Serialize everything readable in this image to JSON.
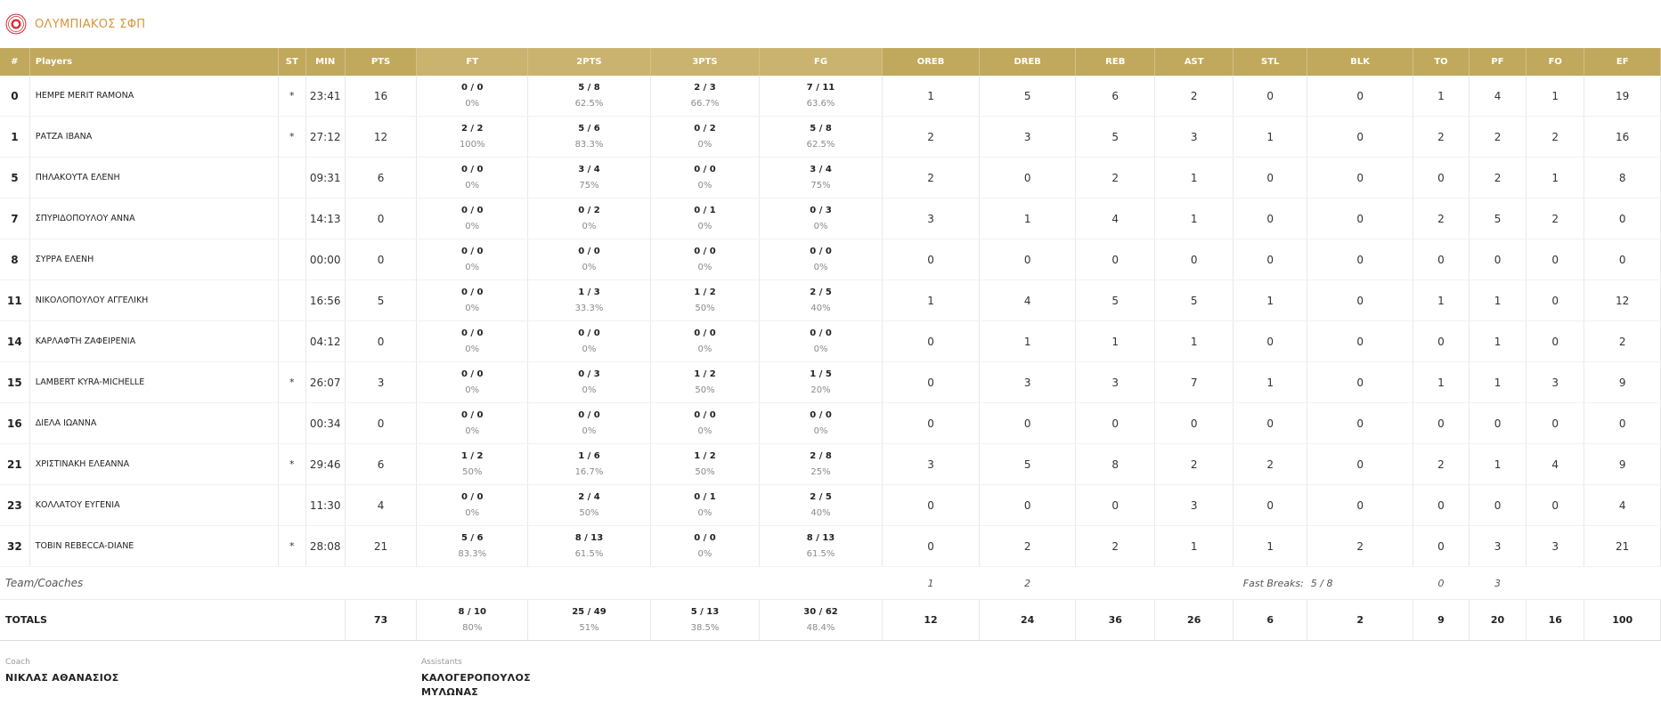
{
  "team": {
    "name": "ΟΛΥΜΠΙΑΚΟΣ ΣΦΠ"
  },
  "headers": [
    "#",
    "Players",
    "ST",
    "MIN",
    "PTS",
    "FT",
    "2PTS",
    "3PTS",
    "FG",
    "OREB",
    "DREB",
    "REB",
    "AST",
    "STL",
    "BLK",
    "TO",
    "PF",
    "FO",
    "EF"
  ],
  "players": [
    {
      "no": "0",
      "name": "ΗΕΜΡΕ MERIT RAMONA",
      "st": "*",
      "min": "23:41",
      "pts": "16",
      "ft": [
        "0 / 0",
        "0%"
      ],
      "p2": [
        "5 / 8",
        "62.5%"
      ],
      "p3": [
        "2 / 3",
        "66.7%"
      ],
      "fg": [
        "7 / 11",
        "63.6%"
      ],
      "oreb": "1",
      "dreb": "5",
      "reb": "6",
      "ast": "2",
      "stl": "0",
      "blk": "0",
      "to": "1",
      "pf": "4",
      "fo": "1",
      "ef": "19"
    },
    {
      "no": "1",
      "name": "ΡΑΤΖΑ ΙΒΑΝΑ",
      "st": "*",
      "min": "27:12",
      "pts": "12",
      "ft": [
        "2 / 2",
        "100%"
      ],
      "p2": [
        "5 / 6",
        "83.3%"
      ],
      "p3": [
        "0 / 2",
        "0%"
      ],
      "fg": [
        "5 / 8",
        "62.5%"
      ],
      "oreb": "2",
      "dreb": "3",
      "reb": "5",
      "ast": "3",
      "stl": "1",
      "blk": "0",
      "to": "2",
      "pf": "2",
      "fo": "2",
      "ef": "16"
    },
    {
      "no": "5",
      "name": "ΠΗΛΑΚΟΥΤΑ ΕΛΕΝΗ",
      "st": "",
      "min": "09:31",
      "pts": "6",
      "ft": [
        "0 / 0",
        "0%"
      ],
      "p2": [
        "3 / 4",
        "75%"
      ],
      "p3": [
        "0 / 0",
        "0%"
      ],
      "fg": [
        "3 / 4",
        "75%"
      ],
      "oreb": "2",
      "dreb": "0",
      "reb": "2",
      "ast": "1",
      "stl": "0",
      "blk": "0",
      "to": "0",
      "pf": "2",
      "fo": "1",
      "ef": "8"
    },
    {
      "no": "7",
      "name": "ΣΠΥΡΙΔΟΠΟΥΛΟΥ ΑΝΝΑ",
      "st": "",
      "min": "14:13",
      "pts": "0",
      "ft": [
        "0 / 0",
        "0%"
      ],
      "p2": [
        "0 / 2",
        "0%"
      ],
      "p3": [
        "0 / 1",
        "0%"
      ],
      "fg": [
        "0 / 3",
        "0%"
      ],
      "oreb": "3",
      "dreb": "1",
      "reb": "4",
      "ast": "1",
      "stl": "0",
      "blk": "0",
      "to": "2",
      "pf": "5",
      "fo": "2",
      "ef": "0"
    },
    {
      "no": "8",
      "name": "ΣΥΡΡΑ ΕΛΕΝΗ",
      "st": "",
      "min": "00:00",
      "pts": "0",
      "ft": [
        "0 / 0",
        "0%"
      ],
      "p2": [
        "0 / 0",
        "0%"
      ],
      "p3": [
        "0 / 0",
        "0%"
      ],
      "fg": [
        "0 / 0",
        "0%"
      ],
      "oreb": "0",
      "dreb": "0",
      "reb": "0",
      "ast": "0",
      "stl": "0",
      "blk": "0",
      "to": "0",
      "pf": "0",
      "fo": "0",
      "ef": "0"
    },
    {
      "no": "11",
      "name": "ΝΙΚΟΛΟΠΟΥΛΟΥ ΑΓΓΕΛΙΚΗ",
      "st": "",
      "min": "16:56",
      "pts": "5",
      "ft": [
        "0 / 0",
        "0%"
      ],
      "p2": [
        "1 / 3",
        "33.3%"
      ],
      "p3": [
        "1 / 2",
        "50%"
      ],
      "fg": [
        "2 / 5",
        "40%"
      ],
      "oreb": "1",
      "dreb": "4",
      "reb": "5",
      "ast": "5",
      "stl": "1",
      "blk": "0",
      "to": "1",
      "pf": "1",
      "fo": "0",
      "ef": "12"
    },
    {
      "no": "14",
      "name": "ΚΑΡΛΑΦΤΗ ΖΑΦΕΙΡΕΝΙΑ",
      "st": "",
      "min": "04:12",
      "pts": "0",
      "ft": [
        "0 / 0",
        "0%"
      ],
      "p2": [
        "0 / 0",
        "0%"
      ],
      "p3": [
        "0 / 0",
        "0%"
      ],
      "fg": [
        "0 / 0",
        "0%"
      ],
      "oreb": "0",
      "dreb": "1",
      "reb": "1",
      "ast": "1",
      "stl": "0",
      "blk": "0",
      "to": "0",
      "pf": "1",
      "fo": "0",
      "ef": "2"
    },
    {
      "no": "15",
      "name": "LAMBERT KYRA-MICHELLE",
      "st": "*",
      "min": "26:07",
      "pts": "3",
      "ft": [
        "0 / 0",
        "0%"
      ],
      "p2": [
        "0 / 3",
        "0%"
      ],
      "p3": [
        "1 / 2",
        "50%"
      ],
      "fg": [
        "1 / 5",
        "20%"
      ],
      "oreb": "0",
      "dreb": "3",
      "reb": "3",
      "ast": "7",
      "stl": "1",
      "blk": "0",
      "to": "1",
      "pf": "1",
      "fo": "3",
      "ef": "9"
    },
    {
      "no": "16",
      "name": "ΔΙΕΛΑ ΙΩΑΝΝΑ",
      "st": "",
      "min": "00:34",
      "pts": "0",
      "ft": [
        "0 / 0",
        "0%"
      ],
      "p2": [
        "0 / 0",
        "0%"
      ],
      "p3": [
        "0 / 0",
        "0%"
      ],
      "fg": [
        "0 / 0",
        "0%"
      ],
      "oreb": "0",
      "dreb": "0",
      "reb": "0",
      "ast": "0",
      "stl": "0",
      "blk": "0",
      "to": "0",
      "pf": "0",
      "fo": "0",
      "ef": "0"
    },
    {
      "no": "21",
      "name": "ΧΡΙΣΤΙΝΑΚΗ ΕΛΕΑΝΝΑ",
      "st": "*",
      "min": "29:46",
      "pts": "6",
      "ft": [
        "1 / 2",
        "50%"
      ],
      "p2": [
        "1 / 6",
        "16.7%"
      ],
      "p3": [
        "1 / 2",
        "50%"
      ],
      "fg": [
        "2 / 8",
        "25%"
      ],
      "oreb": "3",
      "dreb": "5",
      "reb": "8",
      "ast": "2",
      "stl": "2",
      "blk": "0",
      "to": "2",
      "pf": "1",
      "fo": "4",
      "ef": "9"
    },
    {
      "no": "23",
      "name": "ΚΟΛΛΑΤΟΥ ΕΥΓΕΝΙΑ",
      "st": "",
      "min": "11:30",
      "pts": "4",
      "ft": [
        "0 / 0",
        "0%"
      ],
      "p2": [
        "2 / 4",
        "50%"
      ],
      "p3": [
        "0 / 1",
        "0%"
      ],
      "fg": [
        "2 / 5",
        "40%"
      ],
      "oreb": "0",
      "dreb": "0",
      "reb": "0",
      "ast": "3",
      "stl": "0",
      "blk": "0",
      "to": "0",
      "pf": "0",
      "fo": "0",
      "ef": "4"
    },
    {
      "no": "32",
      "name": "TOBIN REBECCA-DIANE",
      "st": "*",
      "min": "28:08",
      "pts": "21",
      "ft": [
        "5 / 6",
        "83.3%"
      ],
      "p2": [
        "8 / 13",
        "61.5%"
      ],
      "p3": [
        "0 / 0",
        "0%"
      ],
      "fg": [
        "8 / 13",
        "61.5%"
      ],
      "oreb": "0",
      "dreb": "2",
      "reb": "2",
      "ast": "1",
      "stl": "1",
      "blk": "2",
      "to": "0",
      "pf": "3",
      "fo": "3",
      "ef": "21"
    }
  ],
  "team_row": {
    "label": "Team/Coaches",
    "oreb": "1",
    "dreb": "2",
    "fast_breaks_label": "Fast Breaks:",
    "fast_breaks_value": "5 / 8",
    "to": "0",
    "pf": "3"
  },
  "totals": {
    "label": "TOTALS",
    "pts": "73",
    "ft": [
      "8 / 10",
      "80%"
    ],
    "p2": [
      "25 / 49",
      "51%"
    ],
    "p3": [
      "5 / 13",
      "38.5%"
    ],
    "fg": [
      "30 / 62",
      "48.4%"
    ],
    "oreb": "12",
    "dreb": "24",
    "reb": "36",
    "ast": "26",
    "stl": "6",
    "blk": "2",
    "to": "9",
    "pf": "20",
    "fo": "16",
    "ef": "100"
  },
  "coach": {
    "label": "Coach",
    "name": "ΝΙΚΛΑΣ ΑΘΑΝΑΣΙΟΣ"
  },
  "assistants": {
    "label": "Assistants",
    "names": [
      "ΚΑΛΟΓΕΡΟΠΟΥΛΟΣ",
      "ΜΥΛΩΝΑΣ"
    ]
  },
  "colors": {
    "header_bg": "#c0a85d",
    "header_alt_bg": "#c9b36f",
    "accent": "#d8943a",
    "logo_red": "#d8262e"
  },
  "icons": {
    "logo": "olympiacos-logo"
  }
}
